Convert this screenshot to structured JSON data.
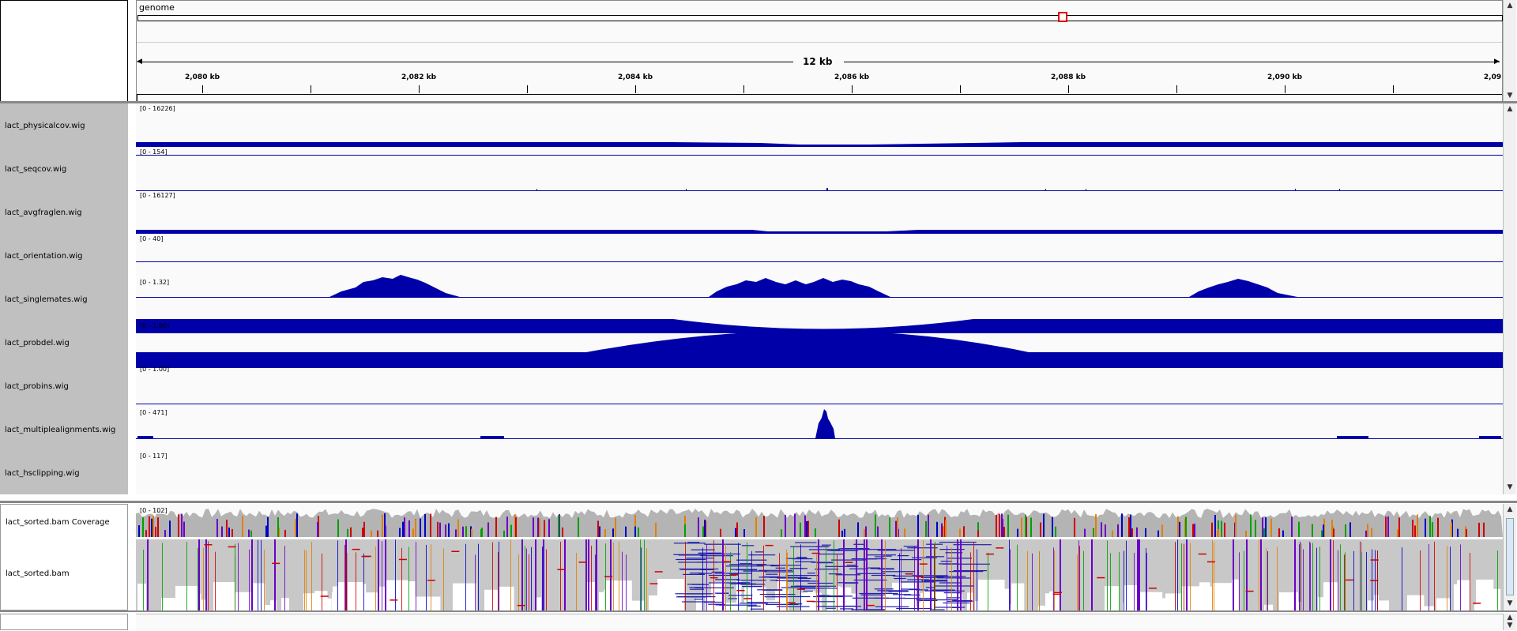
{
  "header": {
    "genome_label": "genome",
    "ruler_span": "12 kb",
    "ticks": [
      "2,080 kb",
      "2,082 kb",
      "2,084 kb",
      "2,086 kb",
      "2,088 kb",
      "2,090 kb",
      "2,09"
    ]
  },
  "tracks": [
    {
      "name": "lact_physicalcov.wig",
      "range": "[0 - 16226]"
    },
    {
      "name": "lact_seqcov.wig",
      "range": "[0 - 154]"
    },
    {
      "name": "lact_avgfraglen.wig",
      "range": "[0 - 16127]"
    },
    {
      "name": "lact_orientation.wig",
      "range": "[0 - 40]"
    },
    {
      "name": "lact_singlemates.wig",
      "range": "[0 - 1.32]"
    },
    {
      "name": "lact_probdel.wig",
      "range": "[0 - 1.00]"
    },
    {
      "name": "lact_probins.wig",
      "range": "[0 - 1.00]"
    },
    {
      "name": "lact_multiplealignments.wig",
      "range": "[0 - 471]"
    },
    {
      "name": "lact_hsclipping.wig",
      "range": "[0 - 117]"
    }
  ],
  "bam": {
    "coverage_label": "lact_sorted.bam Coverage",
    "coverage_range": "[0 - 102]",
    "reads_label": "lact_sorted.bam"
  },
  "colors": {
    "track_fill": "#0000a8",
    "panel_gray": "#c0c0c0",
    "coverage_gray": "#b4b4b4",
    "region_box": "#e00000"
  }
}
